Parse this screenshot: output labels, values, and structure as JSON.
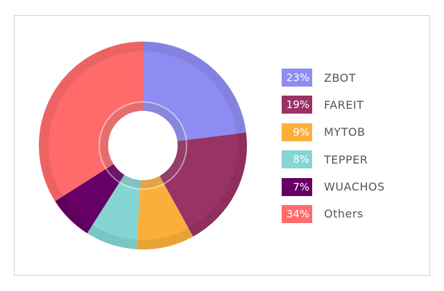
{
  "chart_data": {
    "type": "pie",
    "style": "donut",
    "title": "",
    "slices": [
      {
        "label": "ZBOT",
        "value": 23,
        "pct_label": "23%",
        "color": "#8e8cf2"
      },
      {
        "label": "FAREIT",
        "value": 19,
        "pct_label": "19%",
        "color": "#993366"
      },
      {
        "label": "MYTOB",
        "value": 9,
        "pct_label": "9%",
        "color": "#fbaf3b"
      },
      {
        "label": "TEPPER",
        "value": 8,
        "pct_label": "8%",
        "color": "#84d5d4"
      },
      {
        "label": "WUACHOS",
        "value": 7,
        "pct_label": "7%",
        "color": "#660066"
      },
      {
        "label": "Others",
        "value": 34,
        "pct_label": "34%",
        "color": "#ff6b6b"
      }
    ],
    "legend_position": "right"
  }
}
